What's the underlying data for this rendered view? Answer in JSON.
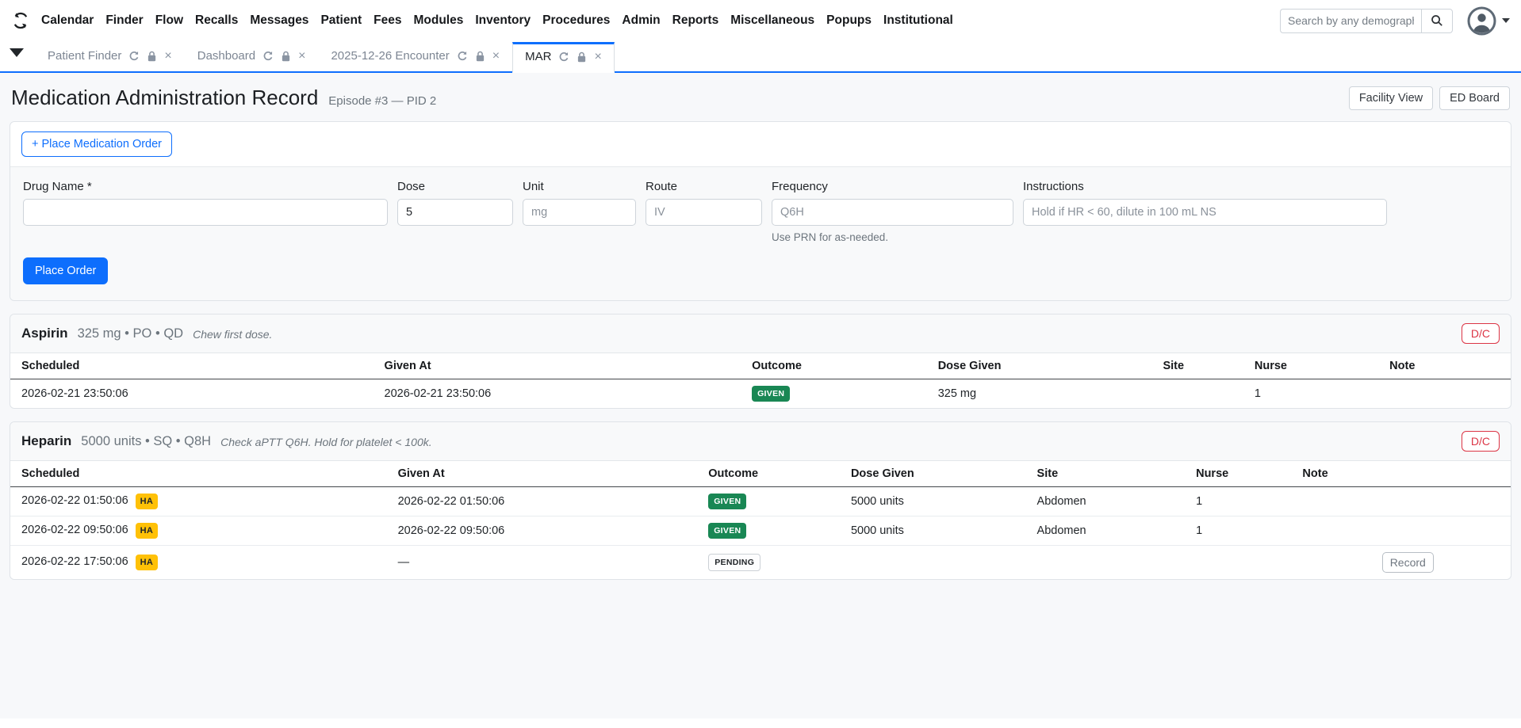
{
  "colors": {
    "primary": "#0d6efd",
    "given_badge": "#198754",
    "ha_badge": "#ffc107",
    "discontinue": "#dc3545",
    "tab_accent": "#0d6efd"
  },
  "navbar": {
    "brand_icon": "sync-icon",
    "items": [
      "Calendar",
      "Finder",
      "Flow",
      "Recalls",
      "Messages",
      "Patient",
      "Fees",
      "Modules",
      "Inventory",
      "Procedures",
      "Admin",
      "Reports",
      "Miscellaneous",
      "Popups",
      "Institutional"
    ],
    "search": {
      "placeholder": "Search by any demographi",
      "button_icon": "search-icon"
    },
    "user": {
      "avatar_icon": "user-avatar-icon",
      "caret_icon": "caret-down-icon"
    }
  },
  "tabbar": {
    "menu_icon": "tab-list-caret-icon",
    "tab_icons": [
      "refresh-icon",
      "lock-icon",
      "close-icon"
    ],
    "tabs": [
      {
        "label": "Patient Finder",
        "active": false
      },
      {
        "label": "Dashboard",
        "active": false
      },
      {
        "label": "2025-12-26 Encounter",
        "active": false
      },
      {
        "label": "MAR",
        "active": true
      }
    ]
  },
  "header": {
    "title": "Medication Administration Record",
    "subtitle": "Episode #3 — PID 2",
    "buttons": [
      "Facility View",
      "ED Board"
    ]
  },
  "order_form": {
    "toggle_label": "+ Place Medication Order",
    "submit_label": "Place Order",
    "fields": [
      {
        "label": "Drug Name *",
        "value": "",
        "placeholder": ""
      },
      {
        "label": "Dose",
        "value": "5",
        "placeholder": ""
      },
      {
        "label": "Unit",
        "value": "",
        "placeholder": "mg"
      },
      {
        "label": "Route",
        "value": "",
        "placeholder": "IV"
      },
      {
        "label": "Frequency",
        "value": "",
        "placeholder": "Q6H",
        "help": "Use PRN for as-needed."
      },
      {
        "label": "Instructions",
        "value": "",
        "placeholder": "Hold if HR < 60, dilute in 100 mL NS"
      }
    ]
  },
  "medications": [
    {
      "name": "Aspirin",
      "summary": "325 mg • PO • QD",
      "note": "Chew first dose.",
      "dc_label": "D/C",
      "columns": [
        "Scheduled",
        "Given At",
        "Outcome",
        "Dose Given",
        "Site",
        "Nurse",
        "Note"
      ],
      "rows": [
        {
          "scheduled": "2026-02-21 23:50:06",
          "ha": false,
          "given_at": "2026-02-21 23:50:06",
          "outcome": "GIVEN",
          "dose_given": "325 mg",
          "site": "",
          "nurse": "1",
          "note": "",
          "action": ""
        }
      ]
    },
    {
      "name": "Heparin",
      "summary": "5000 units • SQ • Q8H",
      "note": "Check aPTT Q6H. Hold for platelet < 100k.",
      "dc_label": "D/C",
      "columns": [
        "Scheduled",
        "Given At",
        "Outcome",
        "Dose Given",
        "Site",
        "Nurse",
        "Note"
      ],
      "rows": [
        {
          "scheduled": "2026-02-22 01:50:06",
          "ha": true,
          "given_at": "2026-02-22 01:50:06",
          "outcome": "GIVEN",
          "dose_given": "5000 units",
          "site": "Abdomen",
          "nurse": "1",
          "note": "",
          "action": ""
        },
        {
          "scheduled": "2026-02-22 09:50:06",
          "ha": true,
          "given_at": "2026-02-22 09:50:06",
          "outcome": "GIVEN",
          "dose_given": "5000 units",
          "site": "Abdomen",
          "nurse": "1",
          "note": "",
          "action": ""
        },
        {
          "scheduled": "2026-02-22 17:50:06",
          "ha": true,
          "given_at": "—",
          "outcome": "PENDING",
          "dose_given": "",
          "site": "",
          "nurse": "",
          "note": "",
          "action": "Record"
        }
      ]
    }
  ]
}
